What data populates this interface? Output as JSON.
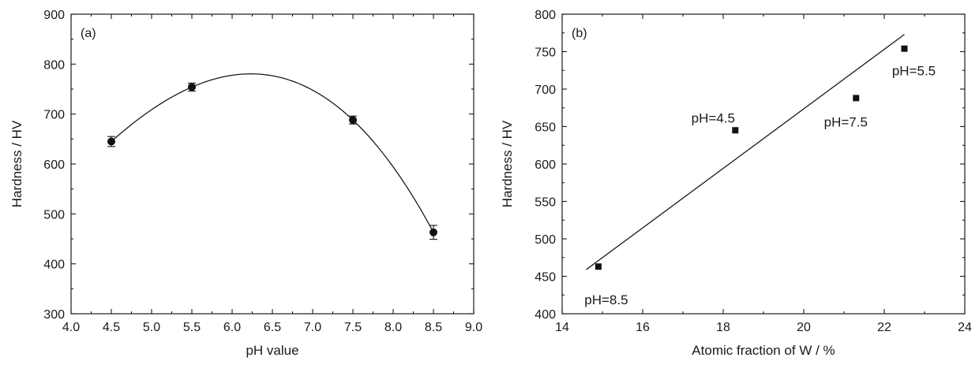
{
  "chart_data": [
    {
      "type": "line",
      "panel_label": "(a)",
      "xlabel": "pH value",
      "ylabel": "Hardness / HV",
      "xlim": [
        4.0,
        9.0
      ],
      "ylim": [
        300,
        900
      ],
      "xticks": [
        "4.0",
        "4.5",
        "5.0",
        "5.5",
        "6.0",
        "6.5",
        "7.0",
        "7.5",
        "8.0",
        "8.5",
        "9.0"
      ],
      "yticks": [
        "300",
        "400",
        "500",
        "600",
        "700",
        "800",
        "900"
      ],
      "grid": false,
      "series": [
        {
          "x": [
            4.5,
            5.5,
            7.5,
            8.5
          ],
          "y": [
            645,
            754,
            688,
            463
          ],
          "error": [
            10,
            8,
            8,
            14
          ],
          "marker": "circle",
          "fit": "smooth curve"
        }
      ]
    },
    {
      "type": "scatter",
      "panel_label": "(b)",
      "xlabel": "Atomic fraction of W / %",
      "ylabel": "Hardness / HV",
      "xlim": [
        14,
        24
      ],
      "ylim": [
        400,
        800
      ],
      "xticks": [
        "14",
        "16",
        "18",
        "20",
        "22",
        "24"
      ],
      "yticks": [
        "400",
        "450",
        "500",
        "550",
        "600",
        "650",
        "700",
        "750",
        "800"
      ],
      "grid": false,
      "series": [
        {
          "x": [
            14.9,
            18.3,
            21.3,
            22.5
          ],
          "y": [
            463,
            645,
            688,
            754
          ],
          "labels": [
            "pH=8.5",
            "pH=4.5",
            "pH=7.5",
            "pH=5.5"
          ],
          "marker": "square"
        }
      ],
      "trendline": {
        "x": [
          14.6,
          22.5
        ],
        "y": [
          459,
          773
        ]
      }
    }
  ]
}
